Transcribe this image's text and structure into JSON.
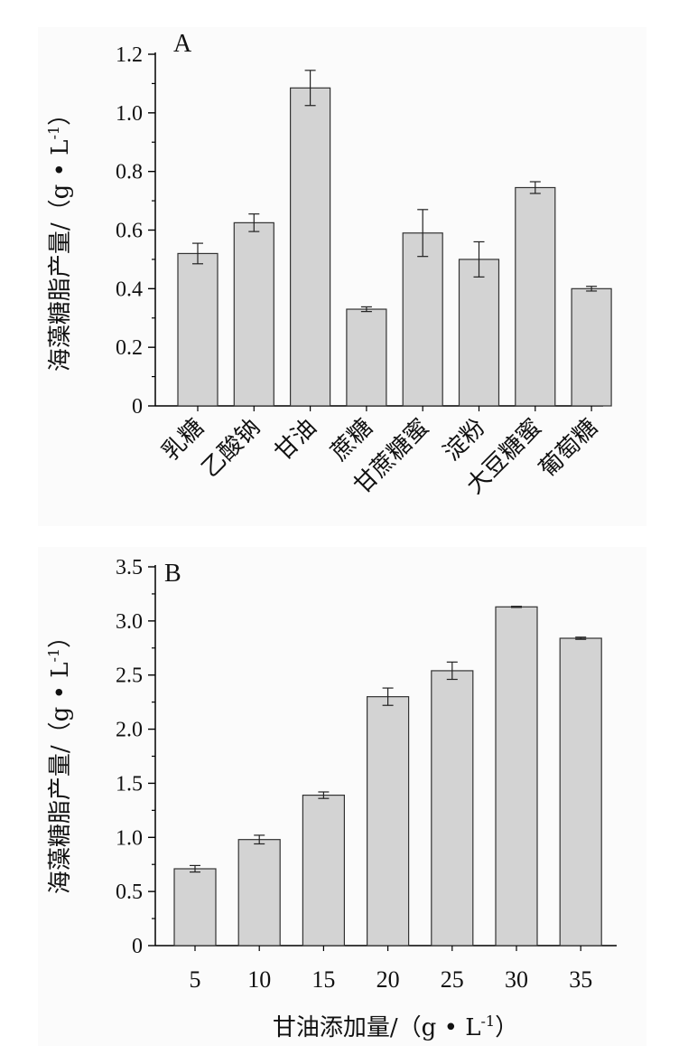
{
  "chart_data": [
    {
      "type": "bar",
      "panel_label": "A",
      "categories": [
        "乳糖",
        "乙酸钠",
        "甘油",
        "蔗糖",
        "甘蔗糖蜜",
        "淀粉",
        "大豆糖蜜",
        "葡萄糖"
      ],
      "values": [
        0.52,
        0.625,
        1.085,
        0.33,
        0.59,
        0.5,
        0.745,
        0.4
      ],
      "errors": [
        0.035,
        0.03,
        0.06,
        0.008,
        0.08,
        0.06,
        0.02,
        0.008
      ],
      "xlabel": "",
      "ylabel": "海藻糖脂产量/（g • L",
      "ylabel_sup": "-1",
      "ylabel_close": "）",
      "ylim": [
        0,
        1.2
      ],
      "yticks": [
        "0",
        "0.2",
        "0.4",
        "0.6",
        "0.8",
        "1.0",
        "1.2"
      ],
      "bar_color": "#d3d3d3",
      "grid": false
    },
    {
      "type": "bar",
      "panel_label": "B",
      "categories": [
        "5",
        "10",
        "15",
        "20",
        "25",
        "30",
        "35"
      ],
      "values": [
        0.71,
        0.98,
        1.39,
        2.3,
        2.54,
        3.13,
        2.84
      ],
      "errors": [
        0.03,
        0.04,
        0.03,
        0.08,
        0.08,
        0.005,
        0.01
      ],
      "xlabel": "甘油添加量/（g • L",
      "xlabel_sup": "-1",
      "xlabel_close": "）",
      "ylabel": "海藻糖脂产量/（g • L",
      "ylabel_sup": "-1",
      "ylabel_close": "）",
      "ylim": [
        0,
        3.5
      ],
      "yticks": [
        "0",
        "0.5",
        "1.0",
        "1.5",
        "2.0",
        "2.5",
        "3.0",
        "3.5"
      ],
      "bar_color": "#d3d3d3",
      "grid": false
    }
  ]
}
